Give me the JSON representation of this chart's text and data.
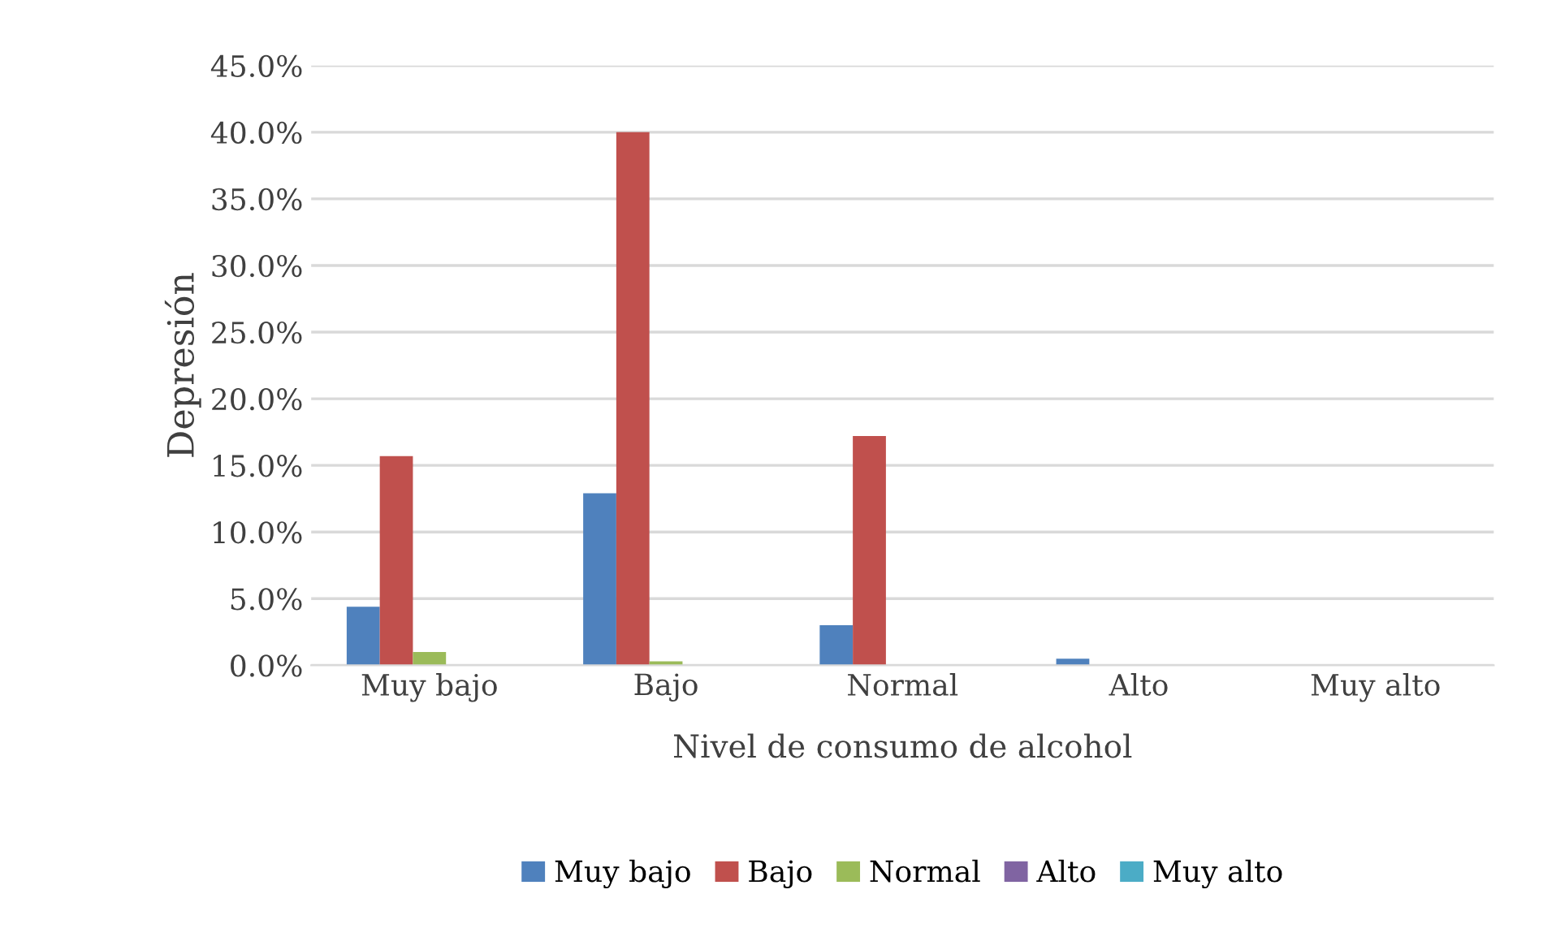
{
  "chart_data": {
    "type": "bar",
    "xlabel": "Nivel de consumo de alcohol",
    "ylabel": "Depresión",
    "categories": [
      "Muy bajo",
      "Bajo",
      "Normal",
      "Alto",
      "Muy alto"
    ],
    "series": [
      {
        "name": "Muy bajo",
        "color": "#4f81bd",
        "values": [
          4.4,
          12.9,
          3.0,
          0.5,
          0
        ]
      },
      {
        "name": "Bajo",
        "color": "#c0504d",
        "values": [
          15.7,
          40.0,
          17.2,
          0,
          0
        ]
      },
      {
        "name": "Normal",
        "color": "#9bbb59",
        "values": [
          1.0,
          0.3,
          0,
          0,
          0
        ]
      },
      {
        "name": "Alto",
        "color": "#8064a2",
        "values": [
          0,
          0,
          0,
          0,
          0
        ]
      },
      {
        "name": "Muy alto",
        "color": "#4bacc6",
        "values": [
          0,
          0,
          0,
          0,
          0
        ]
      }
    ],
    "ylim": [
      0,
      45
    ],
    "yticks": [
      {
        "value": 0,
        "label": "0.0%"
      },
      {
        "value": 5,
        "label": "5.0%"
      },
      {
        "value": 10,
        "label": "10.0%"
      },
      {
        "value": 15,
        "label": "15.0%"
      },
      {
        "value": 20,
        "label": "20.0%"
      },
      {
        "value": 25,
        "label": "25.0%"
      },
      {
        "value": 30,
        "label": "30.0%"
      },
      {
        "value": 35,
        "label": "35.0%"
      },
      {
        "value": 40,
        "label": "40.0%"
      },
      {
        "value": 45,
        "label": "45.0%"
      }
    ],
    "grid": "y",
    "legend": "bottom"
  }
}
